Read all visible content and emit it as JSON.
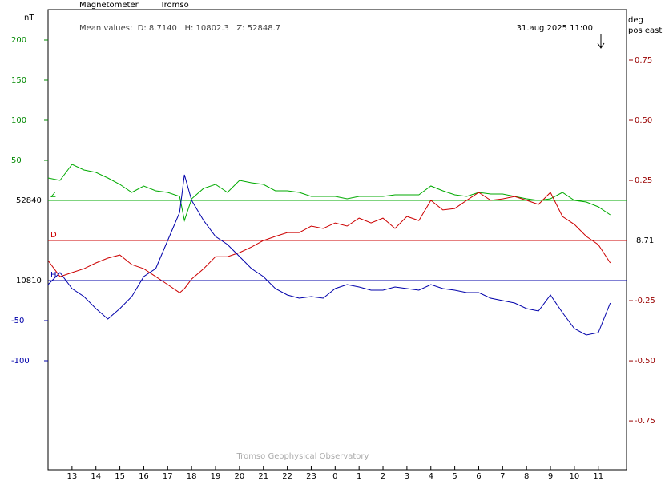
{
  "chart_data": {
    "type": "line",
    "title": "Magnetometer",
    "station": "Tromso",
    "mean_values": "Mean values:  D: 8.7140   H: 10802.3   Z: 52848.7",
    "timestamp": "31.aug 2025 11:00",
    "footer": "Tromso Geophysical Observatory",
    "y_label": "nT",
    "y2_label": [
      "deg",
      "pos east"
    ],
    "x": [
      12,
      12.5,
      13,
      13.5,
      14,
      14.5,
      15,
      15.5,
      16,
      16.5,
      17,
      17.5,
      17.7,
      18,
      18.5,
      19,
      19.5,
      20,
      20.5,
      21,
      21.5,
      22,
      22.5,
      23,
      23.5,
      24,
      24.5,
      25,
      25.5,
      26,
      26.5,
      27,
      27.5,
      28,
      28.5,
      29,
      29.5,
      30,
      30.5,
      31,
      31.5,
      32,
      32.5,
      33,
      33.5,
      34,
      34.5,
      35,
      35.5
    ],
    "xlim": [
      12,
      36.18
    ],
    "xticks": [
      {
        "value": 13,
        "label": "13"
      },
      {
        "value": 14,
        "label": "14"
      },
      {
        "value": 15,
        "label": "15"
      },
      {
        "value": 16,
        "label": "16"
      },
      {
        "value": 17,
        "label": "17"
      },
      {
        "value": 18,
        "label": "18"
      },
      {
        "value": 19,
        "label": "19"
      },
      {
        "value": 20,
        "label": "20"
      },
      {
        "value": 21,
        "label": "21"
      },
      {
        "value": 22,
        "label": "22"
      },
      {
        "value": 23,
        "label": "23"
      },
      {
        "value": 24,
        "label": "0"
      },
      {
        "value": 25,
        "label": "1"
      },
      {
        "value": 26,
        "label": "2"
      },
      {
        "value": 27,
        "label": "3"
      },
      {
        "value": 28,
        "label": "4"
      },
      {
        "value": 29,
        "label": "5"
      },
      {
        "value": 30,
        "label": "6"
      },
      {
        "value": 31,
        "label": "7"
      },
      {
        "value": 32,
        "label": "8"
      },
      {
        "value": 33,
        "label": "9"
      },
      {
        "value": 34,
        "label": "10"
      },
      {
        "value": 35,
        "label": "11"
      }
    ],
    "series": [
      {
        "name": "Z",
        "color": "#00aa00",
        "tick_color": "#008800",
        "baseline": 52840,
        "ylim": [
          -336,
          238
        ],
        "yticks": [
          50,
          100,
          150,
          200
        ],
        "values": [
          28,
          25,
          45,
          38,
          35,
          28,
          20,
          10,
          18,
          12,
          10,
          5,
          -25,
          2,
          15,
          20,
          10,
          25,
          22,
          20,
          12,
          12,
          10,
          5,
          5,
          5,
          2,
          5,
          5,
          5,
          7,
          7,
          7,
          18,
          12,
          7,
          5,
          10,
          8,
          8,
          5,
          2,
          0,
          2,
          10,
          0,
          -2,
          -8,
          -18
        ]
      },
      {
        "name": "D",
        "color": "#cc0000",
        "tick_color": "#990000",
        "axis": "y2",
        "baseline": 8.71,
        "ylim": [
          -0.953,
          0.96
        ],
        "yticks": [
          0.75,
          {
            "value": 0.5,
            "label": "0.50"
          },
          0.25,
          -0.25,
          {
            "value": -0.5,
            "label": "-0.50"
          },
          -0.75
        ],
        "values": [
          -0.083,
          -0.15,
          -0.133,
          -0.117,
          -0.093,
          -0.073,
          -0.06,
          -0.1,
          -0.117,
          -0.15,
          -0.183,
          -0.217,
          -0.2,
          -0.16,
          -0.117,
          -0.067,
          -0.067,
          -0.05,
          -0.027,
          0,
          0.017,
          0.033,
          0.033,
          0.06,
          0.05,
          0.073,
          0.06,
          0.093,
          0.073,
          0.093,
          0.05,
          0.1,
          0.083,
          0.167,
          0.127,
          0.133,
          0.167,
          0.2,
          0.167,
          0.173,
          0.183,
          0.167,
          0.15,
          0.2,
          0.1,
          0.067,
          0.017,
          -0.017,
          -0.093
        ]
      },
      {
        "name": "H",
        "color": "#0000aa",
        "tick_color": "#0000aa",
        "baseline": 10810,
        "ylim": [
          -236,
          338
        ],
        "yticks": [
          -50,
          -100
        ],
        "values": [
          -5,
          10,
          -10,
          -20,
          -35,
          -48,
          -35,
          -20,
          5,
          15,
          50,
          85,
          132,
          100,
          75,
          55,
          45,
          30,
          15,
          5,
          -10,
          -18,
          -22,
          -20,
          -22,
          -10,
          -5,
          -8,
          -12,
          -12,
          -8,
          -10,
          -12,
          -5,
          -10,
          -12,
          -15,
          -15,
          -22,
          -25,
          -28,
          -35,
          -38,
          -18,
          -40,
          -60,
          -68,
          -65,
          -28
        ]
      }
    ]
  }
}
